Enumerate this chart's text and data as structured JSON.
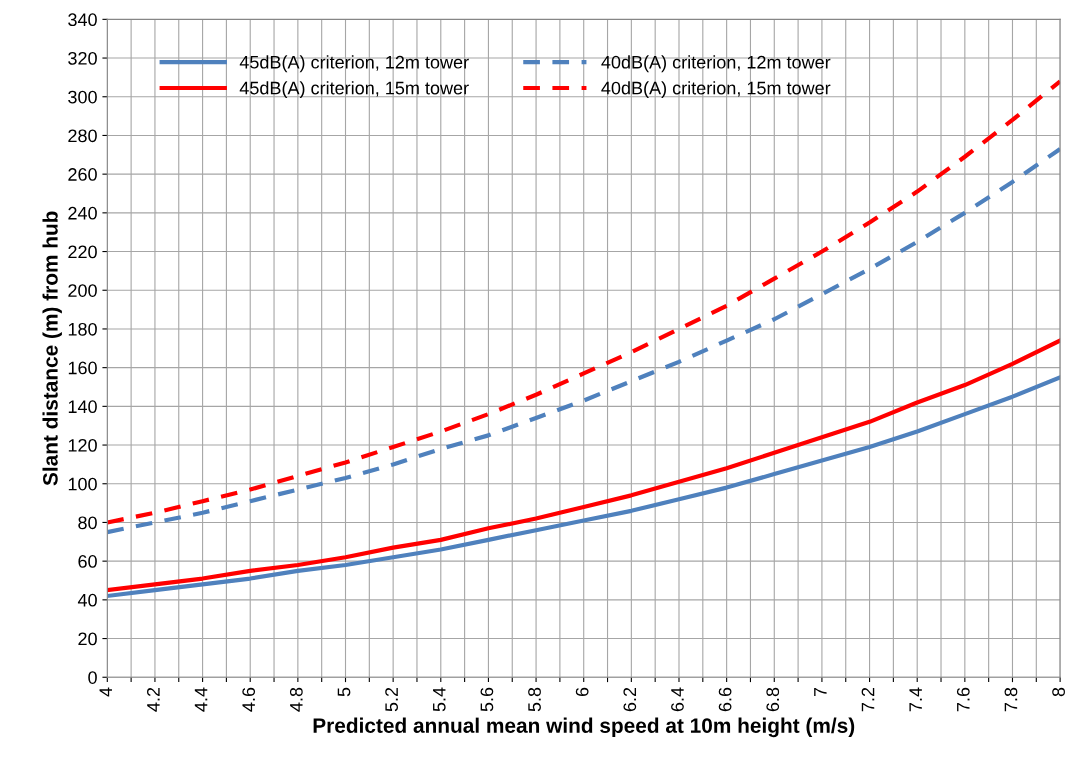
{
  "chart_data": {
    "type": "line",
    "xlabel": "Predicted annual mean wind speed at 10m height (m/s)",
    "ylabel": "Slant distance (m) from hub",
    "x": [
      4,
      4.2,
      4.4,
      4.6,
      4.8,
      5,
      5.2,
      5.4,
      5.6,
      5.8,
      6,
      6.2,
      6.4,
      6.6,
      6.8,
      7,
      7.2,
      7.4,
      7.6,
      7.8,
      8
    ],
    "series": [
      {
        "name": "45dB(A) criterion, 12m tower",
        "color": "#4f81bd",
        "line_style": "solid",
        "values": [
          42,
          45,
          48,
          51,
          55,
          58,
          62,
          66,
          71,
          76,
          81,
          86,
          92,
          98,
          105,
          112,
          119,
          127,
          136,
          145,
          155
        ]
      },
      {
        "name": "45dB(A) criterion, 15m tower",
        "color": "#ff0000",
        "line_style": "solid",
        "values": [
          45,
          48,
          51,
          55,
          58,
          62,
          67,
          71,
          77,
          82,
          88,
          94,
          101,
          108,
          116,
          124,
          132,
          142,
          151,
          162,
          174
        ]
      },
      {
        "name": "40dB(A) criterion, 12m tower",
        "color": "#4f81bd",
        "line_style": "dashed",
        "values": [
          75,
          80,
          85,
          91,
          97,
          103,
          110,
          118,
          125,
          134,
          143,
          153,
          163,
          174,
          185,
          198,
          211,
          225,
          240,
          256,
          273
        ]
      },
      {
        "name": "40dB(A) criterion, 15m tower",
        "color": "#ff0000",
        "line_style": "dashed",
        "values": [
          80,
          85,
          91,
          97,
          104,
          111,
          119,
          127,
          136,
          146,
          157,
          168,
          180,
          192,
          206,
          220,
          235,
          251,
          269,
          288,
          308
        ]
      }
    ],
    "xlim": [
      4,
      8
    ],
    "xticks": [
      4,
      {
        "value": 4.1,
        "label": null
      },
      4.2,
      {
        "value": 4.3,
        "label": null
      },
      4.4,
      {
        "value": 4.5,
        "label": null
      },
      4.6,
      {
        "value": 4.7,
        "label": null
      },
      4.8,
      {
        "value": 4.9,
        "label": null
      },
      5,
      {
        "value": 5.1,
        "label": null
      },
      5.2,
      {
        "value": 5.3,
        "label": null
      },
      5.4,
      {
        "value": 5.5,
        "label": null
      },
      5.6,
      {
        "value": 5.7,
        "label": null
      },
      5.8,
      {
        "value": 5.9,
        "label": null
      },
      6,
      {
        "value": 6.1,
        "label": null
      },
      6.2,
      {
        "value": 6.3,
        "label": null
      },
      6.4,
      {
        "value": 6.5,
        "label": null
      },
      6.6,
      {
        "value": 6.7,
        "label": null
      },
      6.8,
      {
        "value": 6.9,
        "label": null
      },
      7,
      {
        "value": 7.1,
        "label": null
      },
      7.2,
      {
        "value": 7.3,
        "label": null
      },
      7.4,
      {
        "value": 7.5,
        "label": null
      },
      7.6,
      {
        "value": 7.7,
        "label": null
      },
      7.8,
      {
        "value": 7.9,
        "label": null
      },
      8
    ],
    "ylim": [
      0,
      340
    ],
    "yticks": [
      0,
      20,
      40,
      60,
      80,
      100,
      120,
      140,
      160,
      180,
      200,
      220,
      240,
      260,
      280,
      300,
      320,
      340
    ],
    "grid": true,
    "legend": "top left",
    "marker": "none"
  }
}
